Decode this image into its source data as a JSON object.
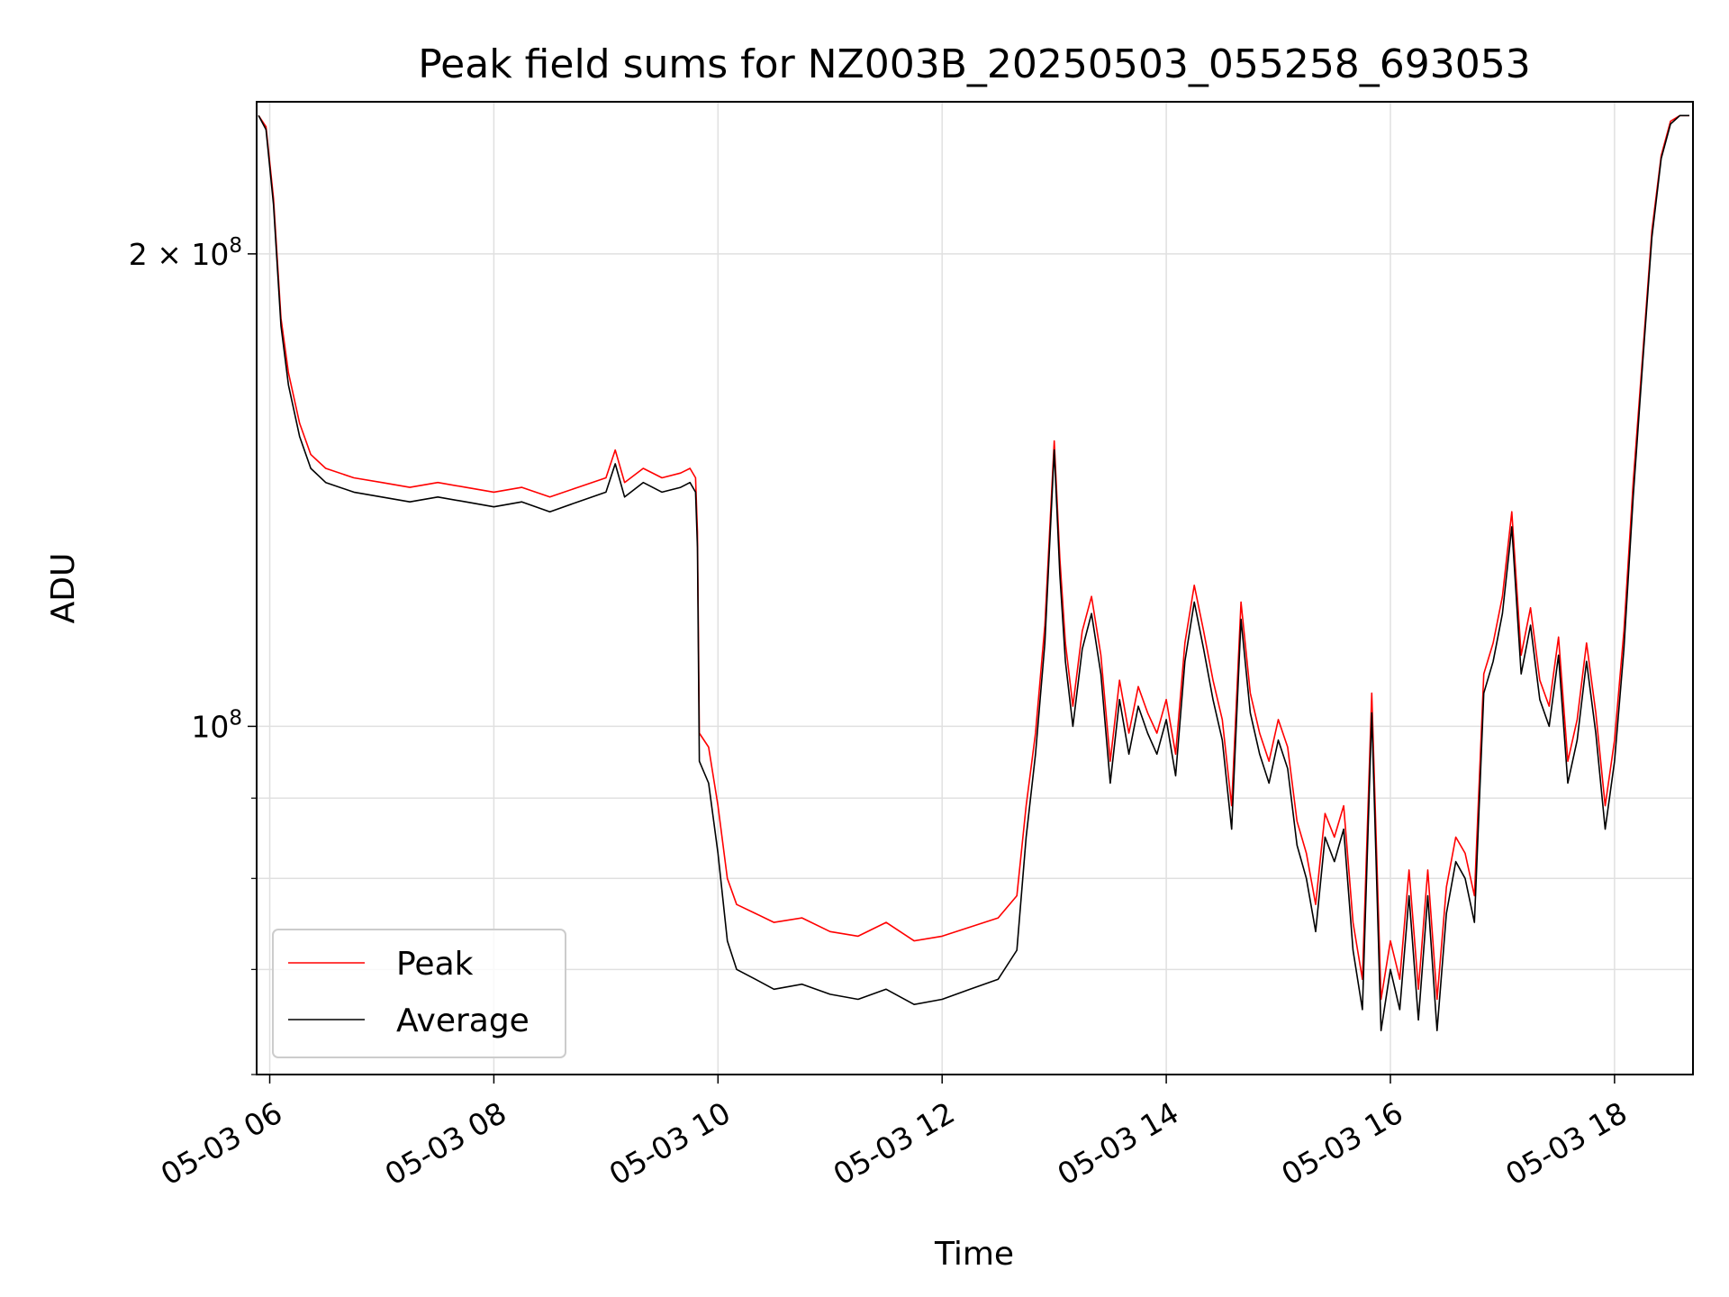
{
  "chart_data": {
    "type": "line",
    "title": "Peak field sums for NZ003B_20250503_055258_693053",
    "xlabel": "Time",
    "ylabel": "ADU",
    "y_scale": "log",
    "grid": true,
    "legend_position": "lower-left",
    "xlim": [
      "2025-05-03 05:53",
      "2025-05-03 18:42"
    ],
    "ylim": [
      60000000,
      250000000
    ],
    "x_ticks": [
      "05-03 06",
      "05-03 08",
      "05-03 10",
      "05-03 12",
      "05-03 14",
      "05-03 16",
      "05-03 18"
    ],
    "y_tick_labels": [
      {
        "value": 200000000,
        "base": "2 × 10",
        "exp": "8"
      },
      {
        "value": 100000000,
        "base": "10",
        "exp": "8"
      }
    ],
    "colors": {
      "peak": "#ff0000",
      "average": "#000000",
      "grid": "#e0e0e0"
    },
    "series": [
      {
        "name": "Average",
        "x": [
          "05:54",
          "05:58",
          "06:02",
          "06:06",
          "06:10",
          "06:16",
          "06:22",
          "06:30",
          "06:45",
          "07:00",
          "07:15",
          "07:30",
          "07:45",
          "08:00",
          "08:15",
          "08:30",
          "08:45",
          "09:00",
          "09:05",
          "09:10",
          "09:20",
          "09:30",
          "09:40",
          "09:45",
          "09:48",
          "09:49",
          "09:50",
          "09:55",
          "10:00",
          "10:05",
          "10:10",
          "10:20",
          "10:30",
          "10:45",
          "11:00",
          "11:15",
          "11:30",
          "11:45",
          "12:00",
          "12:15",
          "12:30",
          "12:40",
          "12:45",
          "12:50",
          "12:55",
          "13:00",
          "13:03",
          "13:06",
          "13:10",
          "13:15",
          "13:20",
          "13:25",
          "13:30",
          "13:35",
          "13:40",
          "13:45",
          "13:50",
          "13:55",
          "14:00",
          "14:05",
          "14:10",
          "14:15",
          "14:20",
          "14:25",
          "14:30",
          "14:35",
          "14:40",
          "14:45",
          "14:50",
          "14:55",
          "15:00",
          "15:05",
          "15:10",
          "15:15",
          "15:20",
          "15:25",
          "15:30",
          "15:35",
          "15:40",
          "15:45",
          "15:50",
          "15:55",
          "16:00",
          "16:05",
          "16:10",
          "16:15",
          "16:20",
          "16:25",
          "16:30",
          "16:35",
          "16:40",
          "16:45",
          "16:50",
          "16:55",
          "17:00",
          "17:05",
          "17:10",
          "17:15",
          "17:20",
          "17:25",
          "17:30",
          "17:35",
          "17:40",
          "17:45",
          "17:50",
          "17:55",
          "18:00",
          "18:05",
          "18:10",
          "18:15",
          "18:20",
          "18:25",
          "18:30",
          "18:35",
          "18:40"
        ],
        "values": [
          245000000,
          240000000,
          215000000,
          180000000,
          165000000,
          153000000,
          146000000,
          143000000,
          141000000,
          140000000,
          139000000,
          140000000,
          139000000,
          138000000,
          139000000,
          137000000,
          139000000,
          141000000,
          147000000,
          140000000,
          143000000,
          141000000,
          142000000,
          143000000,
          141000000,
          130000000,
          95000000,
          92000000,
          83000000,
          73000000,
          70000000,
          69000000,
          68000000,
          68500000,
          67500000,
          67000000,
          68000000,
          66500000,
          67000000,
          68000000,
          69000000,
          72000000,
          85000000,
          96000000,
          113000000,
          150000000,
          125000000,
          110000000,
          100000000,
          112000000,
          118000000,
          108000000,
          92000000,
          104000000,
          96000000,
          103000000,
          99000000,
          96000000,
          101000000,
          93000000,
          110000000,
          120000000,
          112000000,
          104000000,
          98000000,
          86000000,
          117000000,
          102000000,
          96000000,
          92000000,
          98000000,
          94000000,
          84000000,
          80000000,
          74000000,
          85000000,
          82000000,
          86000000,
          72000000,
          66000000,
          102000000,
          64000000,
          70000000,
          66000000,
          78000000,
          65000000,
          78000000,
          64000000,
          76000000,
          82000000,
          80000000,
          75000000,
          105000000,
          110000000,
          118000000,
          134000000,
          108000000,
          116000000,
          104000000,
          100000000,
          111000000,
          92000000,
          98000000,
          110000000,
          99000000,
          86000000,
          95000000,
          112000000,
          140000000,
          170000000,
          205000000,
          230000000,
          242000000,
          245000000,
          245000000
        ]
      },
      {
        "name": "Peak",
        "x": [
          "05:54",
          "05:58",
          "06:02",
          "06:06",
          "06:10",
          "06:16",
          "06:22",
          "06:30",
          "06:45",
          "07:00",
          "07:15",
          "07:30",
          "07:45",
          "08:00",
          "08:15",
          "08:30",
          "08:45",
          "09:00",
          "09:05",
          "09:10",
          "09:20",
          "09:30",
          "09:40",
          "09:45",
          "09:48",
          "09:49",
          "09:50",
          "09:55",
          "10:00",
          "10:05",
          "10:10",
          "10:20",
          "10:30",
          "10:45",
          "11:00",
          "11:15",
          "11:30",
          "11:45",
          "12:00",
          "12:15",
          "12:30",
          "12:40",
          "12:45",
          "12:50",
          "12:55",
          "13:00",
          "13:03",
          "13:06",
          "13:10",
          "13:15",
          "13:20",
          "13:25",
          "13:30",
          "13:35",
          "13:40",
          "13:45",
          "13:50",
          "13:55",
          "14:00",
          "14:05",
          "14:10",
          "14:15",
          "14:20",
          "14:25",
          "14:30",
          "14:35",
          "14:40",
          "14:45",
          "14:50",
          "14:55",
          "15:00",
          "15:05",
          "15:10",
          "15:15",
          "15:20",
          "15:25",
          "15:30",
          "15:35",
          "15:40",
          "15:45",
          "15:50",
          "15:55",
          "16:00",
          "16:05",
          "16:10",
          "16:15",
          "16:20",
          "16:25",
          "16:30",
          "16:35",
          "16:40",
          "16:45",
          "16:50",
          "16:55",
          "17:00",
          "17:05",
          "17:10",
          "17:15",
          "17:20",
          "17:25",
          "17:30",
          "17:35",
          "17:40",
          "17:45",
          "17:50",
          "17:55",
          "18:00",
          "18:05",
          "18:10",
          "18:15",
          "18:20",
          "18:25",
          "18:30",
          "18:35",
          "18:40"
        ],
        "values": [
          245000000,
          241000000,
          217000000,
          182000000,
          168000000,
          156000000,
          149000000,
          146000000,
          144000000,
          143000000,
          142000000,
          143000000,
          142000000,
          141000000,
          142000000,
          140000000,
          142000000,
          144000000,
          150000000,
          143000000,
          146000000,
          144000000,
          145000000,
          146000000,
          144000000,
          133000000,
          99000000,
          97000000,
          89000000,
          80000000,
          77000000,
          76000000,
          75000000,
          75500000,
          74000000,
          73500000,
          75000000,
          73000000,
          73500000,
          74500000,
          75500000,
          78000000,
          89000000,
          99000000,
          116000000,
          152000000,
          128000000,
          113000000,
          103000000,
          115000000,
          121000000,
          111000000,
          95000000,
          107000000,
          99000000,
          106000000,
          102000000,
          99000000,
          104000000,
          96000000,
          113000000,
          123000000,
          115000000,
          107000000,
          101000000,
          89000000,
          120000000,
          105000000,
          99000000,
          95000000,
          101000000,
          97000000,
          87000000,
          83000000,
          77000000,
          88000000,
          85000000,
          89000000,
          75000000,
          69000000,
          105000000,
          67000000,
          73000000,
          69000000,
          81000000,
          68000000,
          81000000,
          67000000,
          79000000,
          85000000,
          83000000,
          78000000,
          108000000,
          113000000,
          121000000,
          137000000,
          111000000,
          119000000,
          107000000,
          103000000,
          114000000,
          95000000,
          101000000,
          113000000,
          102000000,
          89000000,
          98000000,
          115000000,
          143000000,
          172000000,
          207000000,
          231000000,
          243000000,
          245000000,
          245000000
        ]
      }
    ]
  }
}
